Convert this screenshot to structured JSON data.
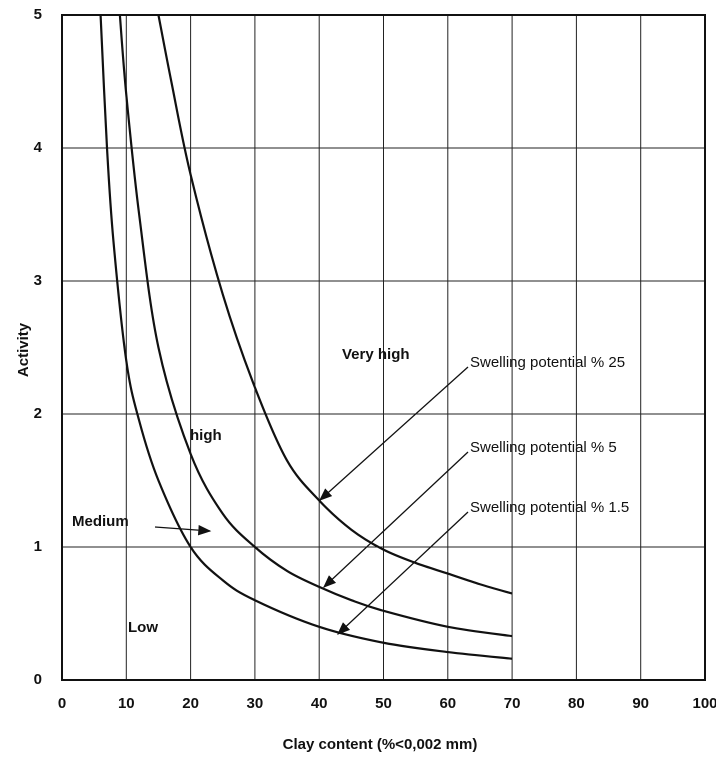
{
  "chart_data": {
    "type": "line",
    "xlabel": "Clay content (%<0,002 mm)",
    "ylabel": "Activity",
    "xlim": [
      0,
      100
    ],
    "ylim": [
      0,
      5
    ],
    "xticks": [
      0,
      10,
      20,
      30,
      40,
      50,
      60,
      70,
      80,
      90,
      100
    ],
    "yticks": [
      0,
      1,
      2,
      3,
      4,
      5
    ],
    "grid": true,
    "series": [
      {
        "name": "Swelling potential % 25",
        "color": "#111111",
        "x": [
          15,
          17,
          20,
          25,
          30,
          35,
          40,
          45,
          50,
          55,
          60,
          65,
          70
        ],
        "values": [
          5,
          4.5,
          3.8,
          2.9,
          2.2,
          1.65,
          1.35,
          1.13,
          0.98,
          0.88,
          0.8,
          0.72,
          0.65
        ]
      },
      {
        "name": "Swelling potential % 5",
        "color": "#111111",
        "x": [
          9,
          10,
          12,
          15,
          20,
          25,
          30,
          35,
          40,
          45,
          50,
          60,
          70
        ],
        "values": [
          5,
          4.4,
          3.5,
          2.5,
          1.7,
          1.25,
          1.0,
          0.82,
          0.7,
          0.6,
          0.52,
          0.4,
          0.33
        ]
      },
      {
        "name": "Swelling potential % 1.5",
        "color": "#111111",
        "x": [
          6,
          7,
          8,
          10,
          12,
          15,
          20,
          25,
          30,
          40,
          50,
          60,
          70
        ],
        "values": [
          5,
          4.0,
          3.3,
          2.4,
          1.95,
          1.5,
          1.0,
          0.75,
          0.6,
          0.4,
          0.28,
          0.21,
          0.16
        ]
      }
    ],
    "annotations": [
      "Very high",
      "high",
      "Medium",
      "Low"
    ]
  }
}
